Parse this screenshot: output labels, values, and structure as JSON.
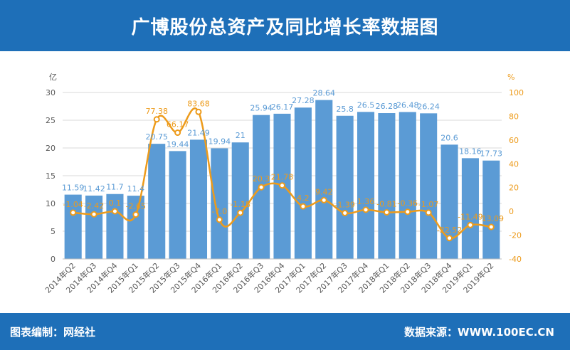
{
  "header": {
    "title": "广博股份总资产及同比增长率数据图"
  },
  "footer": {
    "credit": "图表编制：网经社",
    "source": "数据来源：WWW.100EC.CN"
  },
  "colors": {
    "bar": "#5b9bd5",
    "line": "#ed9b1b",
    "header": "#1e6fb8"
  },
  "chart_data": {
    "type": "bar",
    "categories": [
      "2014年Q2",
      "2014年Q3",
      "2014年Q4",
      "2015年Q1",
      "2015年Q2",
      "2015年Q3",
      "2015年Q4",
      "2016年Q1",
      "2016年Q2",
      "2016年Q3",
      "2016年Q4",
      "2017年Q1",
      "2017年Q2",
      "2017年Q3",
      "2017年Q4",
      "2018年Q1",
      "2018年Q2",
      "2018年Q3",
      "2018年Q4",
      "2019年Q1",
      "2019年Q2"
    ],
    "series": [
      {
        "type": "bar",
        "axis": "left",
        "values": [
          11.59,
          11.42,
          11.7,
          11.4,
          20.75,
          19.44,
          21.49,
          19.94,
          21,
          25.94,
          26.17,
          27.28,
          28.64,
          25.8,
          26.5,
          26.28,
          26.48,
          26.24,
          20.6,
          18.16,
          17.73
        ],
        "labels": [
          "11.59",
          "11.42",
          "11.7",
          "11.4",
          "20.75",
          "19.44",
          "21.49",
          "19.94",
          "21",
          "25.94",
          "26.17",
          "27.28",
          "28.64",
          "25.8",
          "26.5",
          "26.28",
          "26.48",
          "26.24",
          "20.6",
          "18.16",
          "17.73"
        ]
      },
      {
        "type": "line",
        "axis": "right",
        "values": [
          -1.04,
          -2.42,
          0.1,
          -2.65,
          77.38,
          66.17,
          83.68,
          -7.0,
          -1.18,
          20.3,
          21.78,
          4.2,
          9.42,
          -1.39,
          1.36,
          -0.81,
          -0.36,
          -1.07,
          -22.52,
          -11.49,
          -13.09
        ],
        "labels": [
          "-1.04",
          "-2.42",
          "0.1",
          "-2.65",
          "77.38",
          "66.17",
          "83.68",
          "-7.0",
          "-1.18",
          "20.3",
          "21.78",
          "4.2",
          "9.42",
          "-1.39",
          "1.36",
          "-0.81",
          "-0.36",
          "-1.07",
          "-22.52",
          "-11.49",
          "-13.09"
        ]
      }
    ],
    "y_left": {
      "unit": "亿",
      "min": 0,
      "max": 30,
      "ticks": [
        0,
        5,
        10,
        15,
        20,
        25,
        30
      ]
    },
    "y_right": {
      "unit": "%",
      "min": -40,
      "max": 100,
      "ticks": [
        -40,
        -20,
        0,
        20,
        40,
        60,
        80,
        100
      ]
    },
    "grid": true,
    "legend": "none"
  }
}
